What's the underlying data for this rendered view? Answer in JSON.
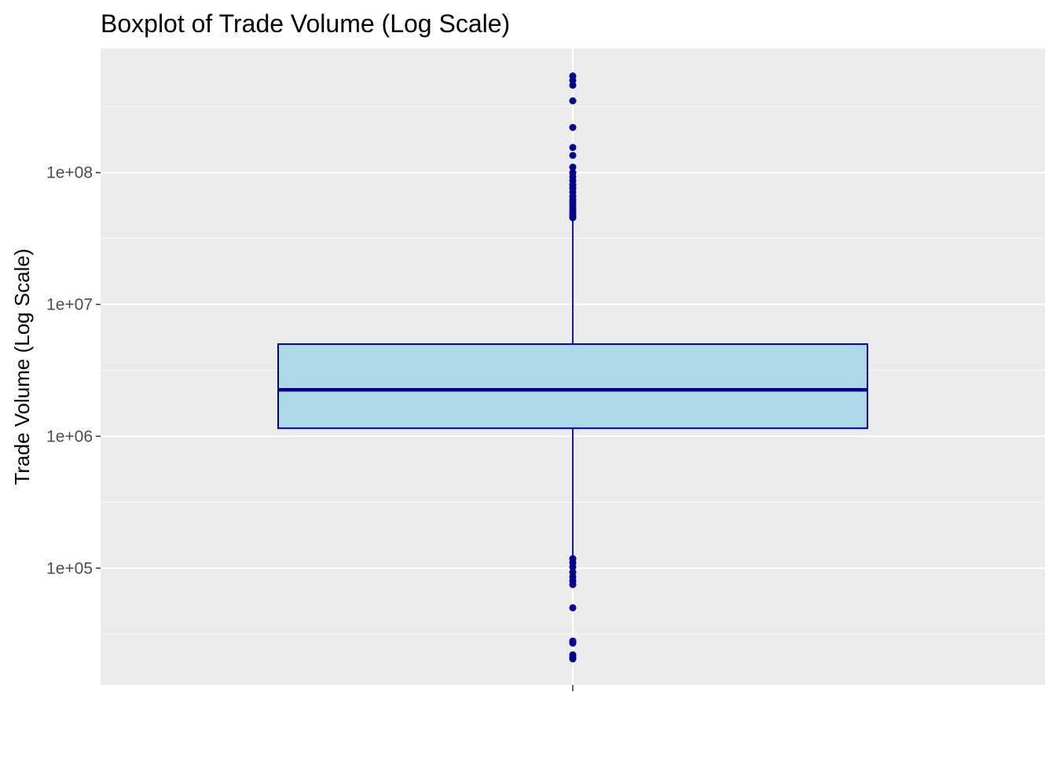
{
  "chart_data": {
    "type": "boxplot",
    "title": "Boxplot of Trade Volume (Log Scale)",
    "xlabel": "",
    "ylabel": "Trade Volume (Log Scale)",
    "y_scale": "log10",
    "ylim": [
      13000,
      870000000
    ],
    "y_ticks": [
      {
        "value": 100000,
        "label": "1e+05"
      },
      {
        "value": 1000000,
        "label": "1e+06"
      },
      {
        "value": 10000000,
        "label": "1e+07"
      },
      {
        "value": 100000000,
        "label": "1e+08"
      }
    ],
    "grid": true,
    "box": {
      "q1": 1150000,
      "median": 2250000,
      "q3": 5000000,
      "whisker_low": 125000,
      "whisker_high": 45000000
    },
    "outliers": [
      540000000,
      500000000,
      460000000,
      350000000,
      220000000,
      155000000,
      135000000,
      110000000,
      100000000,
      93000000,
      87000000,
      81000000,
      76000000,
      71000000,
      66000000,
      62000000,
      59000000,
      56000000,
      53000000,
      51000000,
      49000000,
      47000000,
      45500000,
      118000,
      110000,
      102000,
      93000,
      86000,
      80000,
      75000,
      50000,
      28000,
      27000,
      22000,
      21000,
      20500
    ],
    "colors": {
      "panel_background": "#ebebeb",
      "grid_major": "#ffffff",
      "grid_minor": "#f5f5f5",
      "box_fill": "#add8e6",
      "box_outline": "#00008b",
      "outlier": "#00008b"
    }
  }
}
